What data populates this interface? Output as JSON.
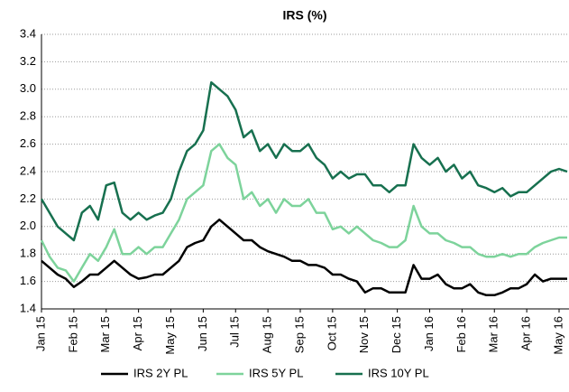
{
  "chart_data": {
    "type": "line",
    "title": "IRS (%)",
    "categories": [
      "Jan 15",
      null,
      null,
      null,
      "Feb 15",
      null,
      null,
      null,
      "Mar 15",
      null,
      null,
      null,
      "Apr 15",
      null,
      null,
      null,
      "May 15",
      null,
      null,
      null,
      "Jun 15",
      null,
      null,
      null,
      "Jul 15",
      null,
      null,
      null,
      "Aug 15",
      null,
      null,
      null,
      "Sep 15",
      null,
      null,
      null,
      "Oct 15",
      null,
      null,
      null,
      "Nov 15",
      null,
      null,
      null,
      "Dec 15",
      null,
      null,
      null,
      "Jan 16",
      null,
      null,
      null,
      "Feb 16",
      null,
      null,
      null,
      "Mar 16",
      null,
      null,
      null,
      "Apr 16",
      null,
      null,
      null,
      "May 16",
      null
    ],
    "series": [
      {
        "name": "IRS 2Y PL",
        "color": "#000000",
        "values": [
          1.75,
          1.7,
          1.65,
          1.62,
          1.56,
          1.6,
          1.65,
          1.65,
          1.7,
          1.75,
          1.7,
          1.65,
          1.62,
          1.63,
          1.65,
          1.65,
          1.7,
          1.75,
          1.85,
          1.88,
          1.9,
          2.0,
          2.05,
          2.0,
          1.95,
          1.9,
          1.9,
          1.85,
          1.82,
          1.8,
          1.78,
          1.75,
          1.75,
          1.72,
          1.72,
          1.7,
          1.65,
          1.65,
          1.62,
          1.6,
          1.52,
          1.55,
          1.55,
          1.52,
          1.52,
          1.52,
          1.72,
          1.62,
          1.62,
          1.65,
          1.58,
          1.55,
          1.55,
          1.58,
          1.52,
          1.5,
          1.5,
          1.52,
          1.55,
          1.55,
          1.58,
          1.65,
          1.6,
          1.62,
          1.62,
          1.62
        ]
      },
      {
        "name": "IRS 5Y PL",
        "color": "#7dd39b",
        "values": [
          1.9,
          1.78,
          1.7,
          1.68,
          1.6,
          1.7,
          1.8,
          1.75,
          1.85,
          1.98,
          1.8,
          1.8,
          1.85,
          1.8,
          1.85,
          1.85,
          1.95,
          2.05,
          2.2,
          2.25,
          2.3,
          2.55,
          2.6,
          2.5,
          2.45,
          2.2,
          2.25,
          2.15,
          2.2,
          2.1,
          2.2,
          2.15,
          2.15,
          2.2,
          2.1,
          2.1,
          1.98,
          2.0,
          1.95,
          2.0,
          1.95,
          1.9,
          1.88,
          1.85,
          1.85,
          1.9,
          2.15,
          2.0,
          1.95,
          1.95,
          1.9,
          1.88,
          1.85,
          1.85,
          1.8,
          1.78,
          1.78,
          1.8,
          1.78,
          1.8,
          1.8,
          1.85,
          1.88,
          1.9,
          1.92,
          1.92
        ]
      },
      {
        "name": "IRS 10Y PL",
        "color": "#17704f",
        "values": [
          2.2,
          2.1,
          2.0,
          1.95,
          1.9,
          2.1,
          2.15,
          2.05,
          2.3,
          2.32,
          2.1,
          2.05,
          2.1,
          2.05,
          2.08,
          2.1,
          2.2,
          2.4,
          2.55,
          2.6,
          2.7,
          3.05,
          3.0,
          2.95,
          2.85,
          2.65,
          2.7,
          2.55,
          2.6,
          2.5,
          2.6,
          2.55,
          2.55,
          2.6,
          2.5,
          2.45,
          2.35,
          2.4,
          2.35,
          2.38,
          2.38,
          2.3,
          2.3,
          2.25,
          2.3,
          2.3,
          2.6,
          2.5,
          2.45,
          2.5,
          2.4,
          2.45,
          2.35,
          2.4,
          2.3,
          2.28,
          2.25,
          2.28,
          2.22,
          2.25,
          2.25,
          2.3,
          2.35,
          2.4,
          2.42,
          2.4
        ]
      }
    ],
    "ylim": [
      1.4,
      3.4
    ],
    "yticks": [
      1.4,
      1.6,
      1.8,
      {
        "value": 2,
        "label": "2.0"
      },
      2.2,
      2.4,
      2.6,
      2.8,
      {
        "value": 3,
        "label": "3.0"
      },
      3.2,
      3.4
    ],
    "grid": true,
    "legend": "bottom"
  }
}
